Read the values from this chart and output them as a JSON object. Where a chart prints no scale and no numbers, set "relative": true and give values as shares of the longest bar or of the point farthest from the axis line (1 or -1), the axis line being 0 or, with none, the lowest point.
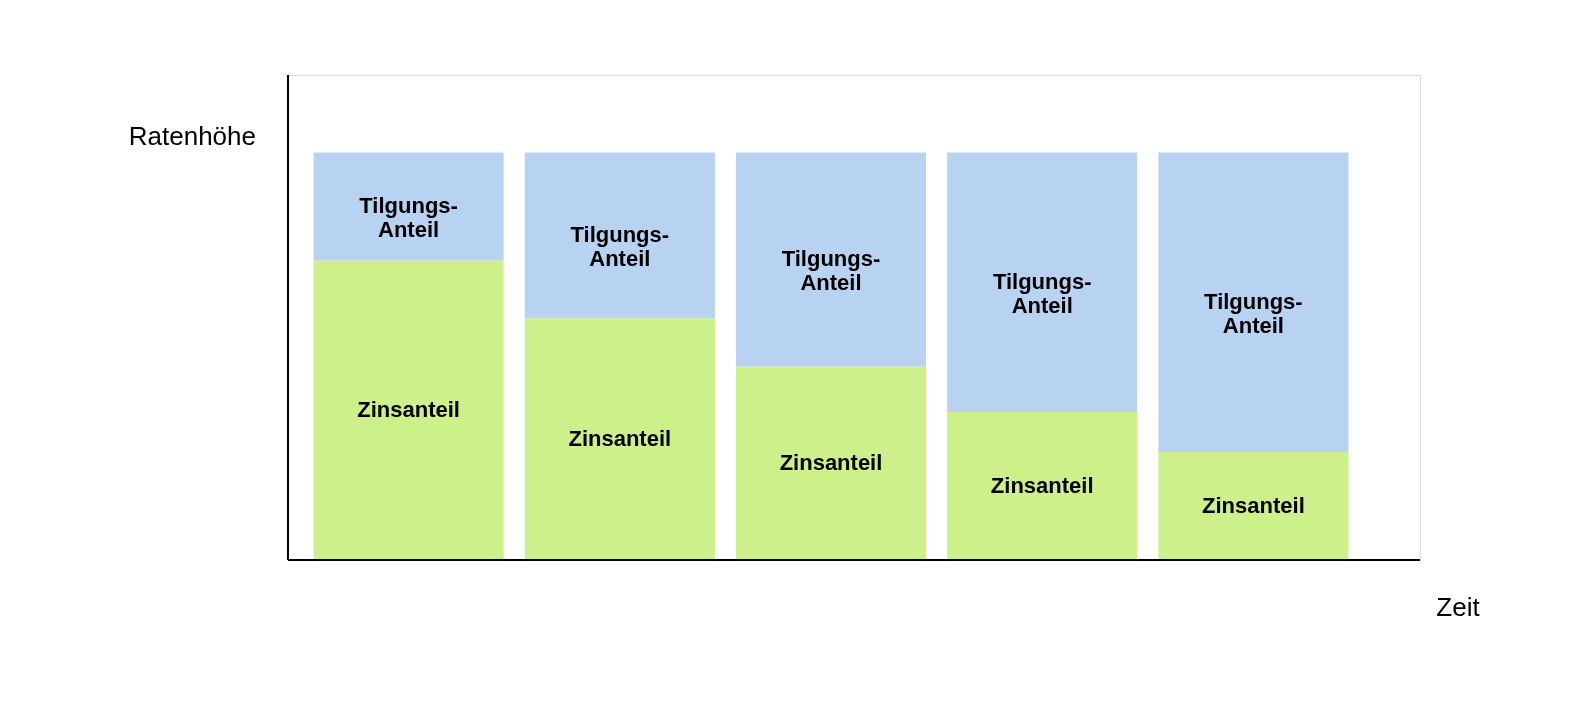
{
  "chart_data": {
    "type": "bar",
    "stacked": true,
    "relative": true,
    "xlabel": "Zeit",
    "ylabel": "Ratenhöhe",
    "categories": [
      null,
      null,
      null,
      null,
      null
    ],
    "series": [
      {
        "name": "Zinsanteil",
        "color": "#cdf08a",
        "values": [
          0.735,
          0.593,
          0.475,
          0.363,
          0.265
        ]
      },
      {
        "name": "Tilgungs-Anteil",
        "color": "#b8d3f1",
        "values": [
          0.265,
          0.407,
          0.525,
          0.637,
          0.735
        ]
      }
    ],
    "legend": false,
    "grid": false,
    "tick_labels": false
  }
}
